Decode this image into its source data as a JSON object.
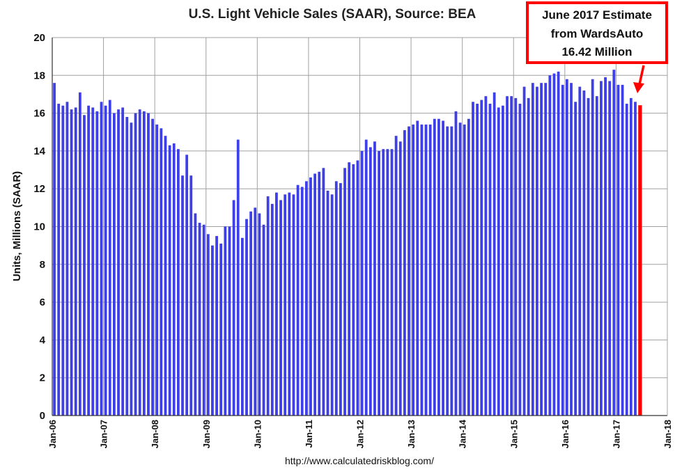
{
  "chart_data": {
    "type": "bar",
    "title": "U.S. Light Vehicle Sales (SAAR), Source: BEA",
    "xlabel": "",
    "ylabel": "Units, Millions (SAAR)",
    "ylim": [
      0,
      20
    ],
    "yticks": [
      0,
      2,
      4,
      6,
      8,
      10,
      12,
      14,
      16,
      18,
      20
    ],
    "grid": true,
    "xtick_labels": [
      "Jan-06",
      "Jan-07",
      "Jan-08",
      "Jan-09",
      "Jan-10",
      "Jan-11",
      "Jan-12",
      "Jan-13",
      "Jan-14",
      "Jan-15",
      "Jan-16",
      "Jan-17",
      "Jan-18"
    ],
    "start_month": "Jan-06",
    "bar_color": "#3f3fe6",
    "highlight_color": "#ff0000",
    "values": [
      17.6,
      16.5,
      16.4,
      16.6,
      16.2,
      16.3,
      17.1,
      15.9,
      16.4,
      16.3,
      16.1,
      16.6,
      16.4,
      16.7,
      16.0,
      16.2,
      16.3,
      15.8,
      15.5,
      16.0,
      16.2,
      16.1,
      16.0,
      15.7,
      15.4,
      15.2,
      14.8,
      14.3,
      14.4,
      14.1,
      12.7,
      13.8,
      12.7,
      10.7,
      10.2,
      10.1,
      9.6,
      9.0,
      9.5,
      9.1,
      10.0,
      10.0,
      11.4,
      14.6,
      9.4,
      10.4,
      10.8,
      11.0,
      10.7,
      10.1,
      11.6,
      11.2,
      11.8,
      11.4,
      11.7,
      11.8,
      11.7,
      12.2,
      12.1,
      12.4,
      12.6,
      12.8,
      12.9,
      13.1,
      11.9,
      11.7,
      12.4,
      12.3,
      13.1,
      13.4,
      13.3,
      13.5,
      14.0,
      14.6,
      14.2,
      14.5,
      14.0,
      14.1,
      14.1,
      14.1,
      14.8,
      14.5,
      15.1,
      15.3,
      15.4,
      15.6,
      15.4,
      15.4,
      15.4,
      15.7,
      15.7,
      15.6,
      15.3,
      15.3,
      16.1,
      15.5,
      15.4,
      15.7,
      16.6,
      16.5,
      16.7,
      16.9,
      16.5,
      17.1,
      16.3,
      16.4,
      16.9,
      16.9,
      16.8,
      16.5,
      17.4,
      16.8,
      17.6,
      17.4,
      17.6,
      17.6,
      18.0,
      18.1,
      18.2,
      17.5,
      17.8,
      17.6,
      16.6,
      17.4,
      17.2,
      16.8,
      17.8,
      16.9,
      17.7,
      17.9,
      17.7,
      18.3,
      17.5,
      17.5,
      16.5,
      16.8,
      16.6,
      16.42
    ],
    "annotation": {
      "lines": [
        "June 2017 Estimate",
        "from WardsAuto",
        "16.42 Million"
      ],
      "target": "Jun-17"
    }
  },
  "footer": {
    "source_url": "http://www.calculatedriskblog.com/"
  }
}
